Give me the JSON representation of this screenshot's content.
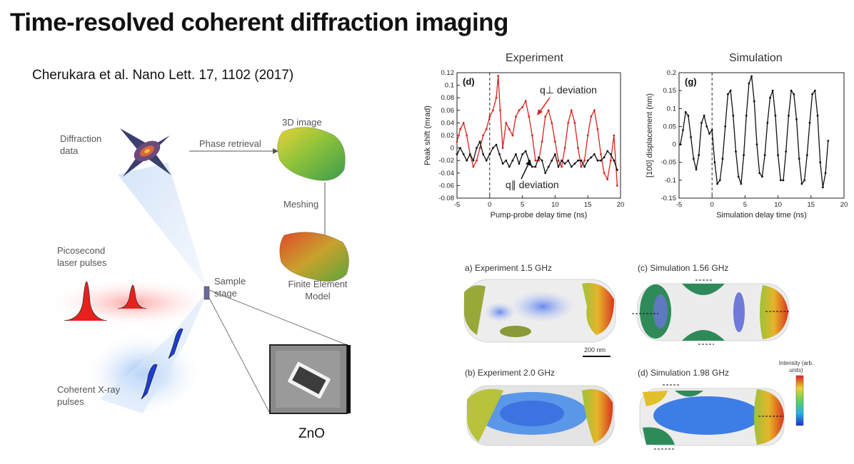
{
  "slide": {
    "title": "Time-resolved coherent diffraction imaging",
    "citation": "Cherukara et al.  Nano Lett. 17, 1102 (2017)"
  },
  "schematic": {
    "diffraction_data": "Diffraction data",
    "phase_retrieval": "Phase retrieval",
    "image_3d": "3D image",
    "meshing": "Meshing",
    "fem_model": "Finite Element Model",
    "laser_pulses": "Picosecond laser pulses",
    "sample_stage": "Sample stage",
    "xray_pulses": "Coherent X-ray pulses",
    "material": "ZnO"
  },
  "colors": {
    "exp_q_perp": "#d8231f",
    "exp_q_par": "#111111",
    "sim": "#111111",
    "laser": "#e8201c",
    "xray": "#1a3fd9"
  },
  "chart_data": [
    {
      "type": "line",
      "title": "Experiment",
      "panel": "(d)",
      "xlabel": "Pump-probe delay time (ns)",
      "ylabel": "Peak shift (mrad)",
      "xlim": [
        -5,
        20
      ],
      "ylim": [
        -0.08,
        0.12
      ],
      "xticks": [
        -5,
        0,
        5,
        10,
        15,
        20
      ],
      "yticks": [
        0.12,
        0.1,
        0.08,
        0.06,
        0.04,
        0.02,
        0,
        -0.02,
        -0.04,
        -0.06,
        -0.08
      ],
      "vline_x": 0,
      "series": [
        {
          "name": "q⊥ deviation",
          "x": [
            -5,
            -4.5,
            -4,
            -3.5,
            -3,
            -2.5,
            -2,
            -1.5,
            -1,
            -0.5,
            0,
            0.5,
            1,
            1.3,
            1.6,
            2,
            2.5,
            3,
            3.5,
            4,
            4.5,
            5,
            5.5,
            6,
            6.5,
            7,
            7.5,
            8,
            8.5,
            9,
            9.5,
            10,
            10.5,
            11,
            11.5,
            12,
            12.5,
            13,
            13.5,
            14,
            14.5,
            15,
            15.5,
            16,
            16.5,
            17,
            17.5,
            18,
            18.5,
            19,
            19.5
          ],
          "y": [
            0.01,
            0.03,
            0.04,
            0.02,
            -0.01,
            -0.03,
            -0.02,
            0.0,
            0.02,
            0.03,
            0.05,
            0.06,
            0.08,
            0.115,
            0.06,
            0.0,
            0.04,
            0.03,
            0.02,
            0.05,
            0.06,
            0.065,
            0.075,
            0.05,
            0.02,
            -0.02,
            -0.02,
            0.01,
            0.05,
            0.06,
            0.04,
            0.01,
            -0.02,
            -0.03,
            0.0,
            0.04,
            0.06,
            0.04,
            0.0,
            -0.03,
            -0.02,
            0.02,
            0.05,
            0.06,
            0.03,
            -0.01,
            -0.04,
            -0.05,
            -0.02,
            0.02,
            -0.06
          ]
        },
        {
          "name": "q∥ deviation",
          "x": [
            -5,
            -4.5,
            -4,
            -3.5,
            -3,
            -2.5,
            -2,
            -1.5,
            -1,
            -0.5,
            0,
            0.5,
            1,
            1.5,
            2,
            2.5,
            3,
            3.5,
            4,
            4.5,
            5,
            5.5,
            6,
            6.5,
            7,
            7.5,
            8,
            8.5,
            9,
            9.5,
            10,
            10.5,
            11,
            11.5,
            12,
            12.5,
            13,
            13.5,
            14,
            14.5,
            15,
            15.5,
            16,
            16.5,
            17,
            17.5,
            18,
            18.5,
            19,
            19.5
          ],
          "y": [
            -0.01,
            0.0,
            -0.01,
            -0.02,
            -0.01,
            -0.02,
            0.0,
            0.01,
            -0.01,
            -0.02,
            -0.01,
            0.0,
            0.005,
            -0.01,
            -0.025,
            -0.02,
            -0.03,
            -0.02,
            -0.01,
            -0.025,
            -0.01,
            -0.005,
            -0.02,
            -0.03,
            -0.03,
            -0.015,
            -0.02,
            -0.04,
            -0.03,
            -0.02,
            -0.01,
            -0.03,
            -0.02,
            -0.025,
            -0.02,
            -0.03,
            -0.025,
            -0.02,
            -0.02,
            -0.03,
            -0.02,
            -0.015,
            -0.01,
            -0.02,
            -0.02,
            -0.015,
            -0.005,
            -0.01,
            -0.02,
            -0.035
          ]
        }
      ]
    },
    {
      "type": "line",
      "title": "Simulation",
      "panel": "(g)",
      "xlabel": "Simulation delay time (ns)",
      "ylabel": "[100] displacement (nm)",
      "xlim": [
        -5,
        20
      ],
      "ylim": [
        -0.15,
        0.2
      ],
      "xticks": [
        -5,
        0,
        5,
        10,
        15,
        20
      ],
      "yticks": [
        0.2,
        0.15,
        0.1,
        0.05,
        0,
        -0.05,
        -0.1,
        -0.15
      ],
      "vline_x": 0,
      "series": [
        {
          "name": "",
          "x": [
            -4.8,
            -4.4,
            -4.0,
            -3.6,
            -3.2,
            -2.8,
            -2.4,
            -2.0,
            -1.6,
            -1.2,
            -0.8,
            -0.4,
            0.0,
            0.4,
            0.8,
            1.2,
            1.6,
            2.0,
            2.4,
            2.8,
            3.2,
            3.6,
            4.0,
            4.4,
            4.8,
            5.2,
            5.6,
            6.0,
            6.4,
            6.8,
            7.2,
            7.6,
            8.0,
            8.4,
            8.8,
            9.2,
            9.6,
            10.0,
            10.4,
            10.8,
            11.2,
            11.6,
            12.0,
            12.4,
            12.8,
            13.2,
            13.6,
            14.0,
            14.4,
            14.8,
            15.2,
            15.6,
            16.0,
            16.4,
            16.8,
            17.2,
            17.6
          ],
          "y": [
            0.0,
            0.04,
            0.09,
            0.08,
            0.02,
            -0.04,
            -0.07,
            -0.03,
            0.06,
            0.08,
            0.05,
            0.03,
            0.04,
            -0.05,
            -0.11,
            -0.1,
            -0.04,
            0.05,
            0.14,
            0.15,
            0.08,
            -0.02,
            -0.09,
            -0.11,
            -0.03,
            0.08,
            0.17,
            0.19,
            0.12,
            0.0,
            -0.08,
            -0.09,
            -0.03,
            0.06,
            0.13,
            0.15,
            0.08,
            -0.03,
            -0.1,
            -0.1,
            -0.02,
            0.08,
            0.15,
            0.14,
            0.07,
            -0.04,
            -0.11,
            -0.1,
            -0.03,
            0.06,
            0.14,
            0.15,
            0.08,
            -0.05,
            -0.12,
            -0.08,
            0.01
          ]
        }
      ]
    }
  ],
  "annotations": {
    "q_perp": "q⊥ deviation",
    "q_par": "q∥ deviation"
  },
  "modes": [
    {
      "label": "a) Experiment 1.5 GHz"
    },
    {
      "label": "(c) Simulation 1.56 GHz"
    },
    {
      "label": "(b) Experiment 2.0 GHz"
    },
    {
      "label": "(d) Simulation 1.98 GHz"
    }
  ],
  "scale_bar": "200 nm",
  "colorbar": {
    "label": "Intensity (arb. units)"
  }
}
